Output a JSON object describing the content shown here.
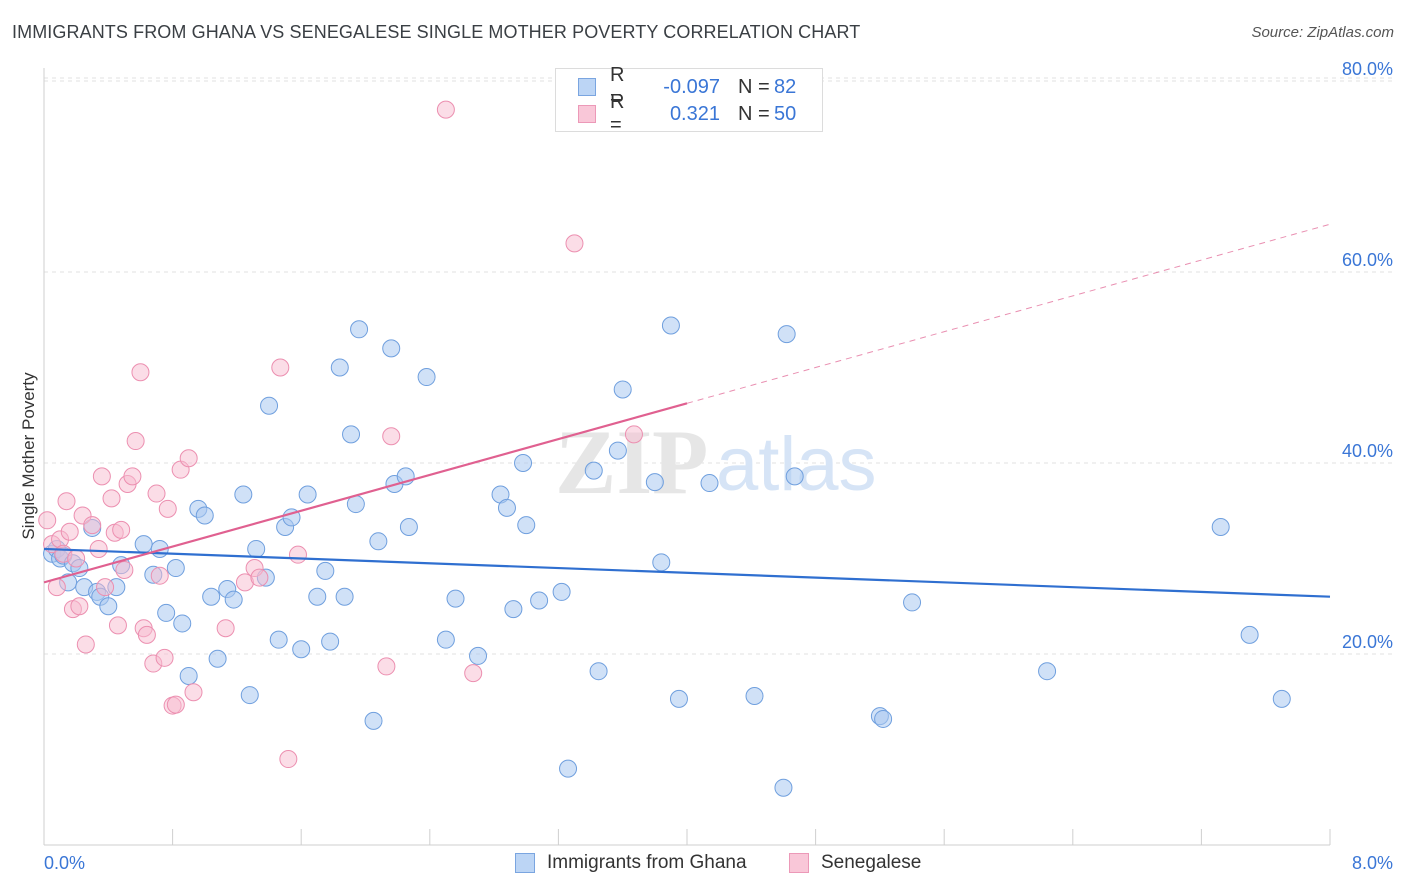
{
  "header": {
    "title": "IMMIGRANTS FROM GHANA VS SENEGALESE SINGLE MOTHER POVERTY CORRELATION CHART",
    "source": "Source: ZipAtlas.com"
  },
  "watermark": {
    "zip": "ZIP",
    "atlas": "atlas"
  },
  "legend": {
    "rows": [
      {
        "r_label": "R =",
        "r_value": "-0.097",
        "n_label": "N =",
        "n_value": "82"
      },
      {
        "r_label": "R =",
        "r_value": "0.321",
        "n_label": "N =",
        "n_value": "50"
      }
    ]
  },
  "colors": {
    "ghana_fill": "#aac8f0",
    "ghana_stroke": "#6f9fde",
    "ghana_line": "#2f6fd0",
    "seneg_fill": "#f7bcd0",
    "seneg_stroke": "#ec8fb0",
    "seneg_line": "#e06090",
    "grid": "#e2e2e2",
    "tick_label": "#3a76d6"
  },
  "chart_data": {
    "type": "scatter",
    "title": "IMMIGRANTS FROM GHANA VS SENEGALESE SINGLE MOTHER POVERTY CORRELATION CHART",
    "xlabel": "",
    "ylabel": "Single Mother Poverty",
    "xlim": [
      0,
      8
    ],
    "ylim": [
      0,
      80
    ],
    "x_tick_labels": [
      "0.0%",
      "8.0%"
    ],
    "y_ticks": [
      20,
      40,
      60,
      80
    ],
    "y_tick_labels": [
      "20.0%",
      "40.0%",
      "60.0%",
      "80.0%"
    ],
    "grid": true,
    "legend_position": "top-center",
    "series": [
      {
        "name": "Immigrants from Ghana",
        "r": -0.097,
        "n": 82,
        "trend": {
          "x": [
            0,
            8
          ],
          "y": [
            31.0,
            26.0
          ]
        },
        "points": [
          [
            0.05,
            30.5
          ],
          [
            0.08,
            31.0
          ],
          [
            0.1,
            30.0
          ],
          [
            0.12,
            30.3
          ],
          [
            0.15,
            27.5
          ],
          [
            0.18,
            29.5
          ],
          [
            0.22,
            29.0
          ],
          [
            0.25,
            27.0
          ],
          [
            0.3,
            33.2
          ],
          [
            0.33,
            26.5
          ],
          [
            0.35,
            26.0
          ],
          [
            0.4,
            25.0
          ],
          [
            0.45,
            27.0
          ],
          [
            0.48,
            29.3
          ],
          [
            0.62,
            31.5
          ],
          [
            0.68,
            28.3
          ],
          [
            0.72,
            31.0
          ],
          [
            0.76,
            24.3
          ],
          [
            0.82,
            29.0
          ],
          [
            0.86,
            23.2
          ],
          [
            0.9,
            17.7
          ],
          [
            0.96,
            35.2
          ],
          [
            1.0,
            34.5
          ],
          [
            1.04,
            26.0
          ],
          [
            1.08,
            19.5
          ],
          [
            1.14,
            26.8
          ],
          [
            1.18,
            25.7
          ],
          [
            1.24,
            36.7
          ],
          [
            1.28,
            15.7
          ],
          [
            1.32,
            31.0
          ],
          [
            1.38,
            28.0
          ],
          [
            1.4,
            46.0
          ],
          [
            1.46,
            21.5
          ],
          [
            1.5,
            33.3
          ],
          [
            1.54,
            34.3
          ],
          [
            1.6,
            20.5
          ],
          [
            1.64,
            36.7
          ],
          [
            1.7,
            26.0
          ],
          [
            1.75,
            28.7
          ],
          [
            1.78,
            21.3
          ],
          [
            1.84,
            50.0
          ],
          [
            1.87,
            26.0
          ],
          [
            1.91,
            43.0
          ],
          [
            1.94,
            35.7
          ],
          [
            1.96,
            54.0
          ],
          [
            2.05,
            13.0
          ],
          [
            2.08,
            31.8
          ],
          [
            2.16,
            52.0
          ],
          [
            2.18,
            37.8
          ],
          [
            2.25,
            38.6
          ],
          [
            2.27,
            33.3
          ],
          [
            2.38,
            49.0
          ],
          [
            2.5,
            21.5
          ],
          [
            2.56,
            25.8
          ],
          [
            2.7,
            19.8
          ],
          [
            2.84,
            36.7
          ],
          [
            2.88,
            35.3
          ],
          [
            2.92,
            24.7
          ],
          [
            2.98,
            40.0
          ],
          [
            3.0,
            33.5
          ],
          [
            3.08,
            25.6
          ],
          [
            3.22,
            26.5
          ],
          [
            3.26,
            8.0
          ],
          [
            3.42,
            39.2
          ],
          [
            3.45,
            18.2
          ],
          [
            3.57,
            41.3
          ],
          [
            3.6,
            47.7
          ],
          [
            3.8,
            38.0
          ],
          [
            3.84,
            29.6
          ],
          [
            3.9,
            54.4
          ],
          [
            3.95,
            15.3
          ],
          [
            4.14,
            37.9
          ],
          [
            4.42,
            15.6
          ],
          [
            4.6,
            6.0
          ],
          [
            4.62,
            53.5
          ],
          [
            4.67,
            38.6
          ],
          [
            5.2,
            13.5
          ],
          [
            5.22,
            13.2
          ],
          [
            5.4,
            25.4
          ],
          [
            6.24,
            18.2
          ],
          [
            7.32,
            33.3
          ],
          [
            7.5,
            22.0
          ],
          [
            7.7,
            15.3
          ]
        ]
      },
      {
        "name": "Senegalese",
        "r": 0.321,
        "n": 50,
        "trend": {
          "x": [
            0,
            8
          ],
          "y": [
            27.5,
            65.0
          ],
          "solid_to_x": 4.0
        },
        "points": [
          [
            0.02,
            34.0
          ],
          [
            0.05,
            31.5
          ],
          [
            0.08,
            27.0
          ],
          [
            0.1,
            32.0
          ],
          [
            0.12,
            30.5
          ],
          [
            0.14,
            36.0
          ],
          [
            0.16,
            32.8
          ],
          [
            0.18,
            24.7
          ],
          [
            0.2,
            30.0
          ],
          [
            0.22,
            25.0
          ],
          [
            0.24,
            34.5
          ],
          [
            0.26,
            21.0
          ],
          [
            0.3,
            33.5
          ],
          [
            0.34,
            31.0
          ],
          [
            0.36,
            38.6
          ],
          [
            0.38,
            27.0
          ],
          [
            0.42,
            36.3
          ],
          [
            0.44,
            32.7
          ],
          [
            0.46,
            23.0
          ],
          [
            0.48,
            33.0
          ],
          [
            0.5,
            28.8
          ],
          [
            0.52,
            37.8
          ],
          [
            0.55,
            38.6
          ],
          [
            0.57,
            42.3
          ],
          [
            0.6,
            49.5
          ],
          [
            0.62,
            22.7
          ],
          [
            0.64,
            22.0
          ],
          [
            0.68,
            19.0
          ],
          [
            0.7,
            36.8
          ],
          [
            0.72,
            28.2
          ],
          [
            0.75,
            19.6
          ],
          [
            0.77,
            35.2
          ],
          [
            0.8,
            14.6
          ],
          [
            0.82,
            14.7
          ],
          [
            0.85,
            39.3
          ],
          [
            0.9,
            40.5
          ],
          [
            0.93,
            16.0
          ],
          [
            1.13,
            22.7
          ],
          [
            1.25,
            27.5
          ],
          [
            1.31,
            29.0
          ],
          [
            1.34,
            28.0
          ],
          [
            1.47,
            50.0
          ],
          [
            1.52,
            9.0
          ],
          [
            1.58,
            30.4
          ],
          [
            2.13,
            18.7
          ],
          [
            2.16,
            42.8
          ],
          [
            2.5,
            77.0
          ],
          [
            2.67,
            18.0
          ],
          [
            3.3,
            63.0
          ],
          [
            3.67,
            43.0
          ]
        ]
      }
    ]
  },
  "bottom_legend": {
    "items": [
      {
        "label": "Immigrants from Ghana"
      },
      {
        "label": "Senegalese"
      }
    ]
  }
}
